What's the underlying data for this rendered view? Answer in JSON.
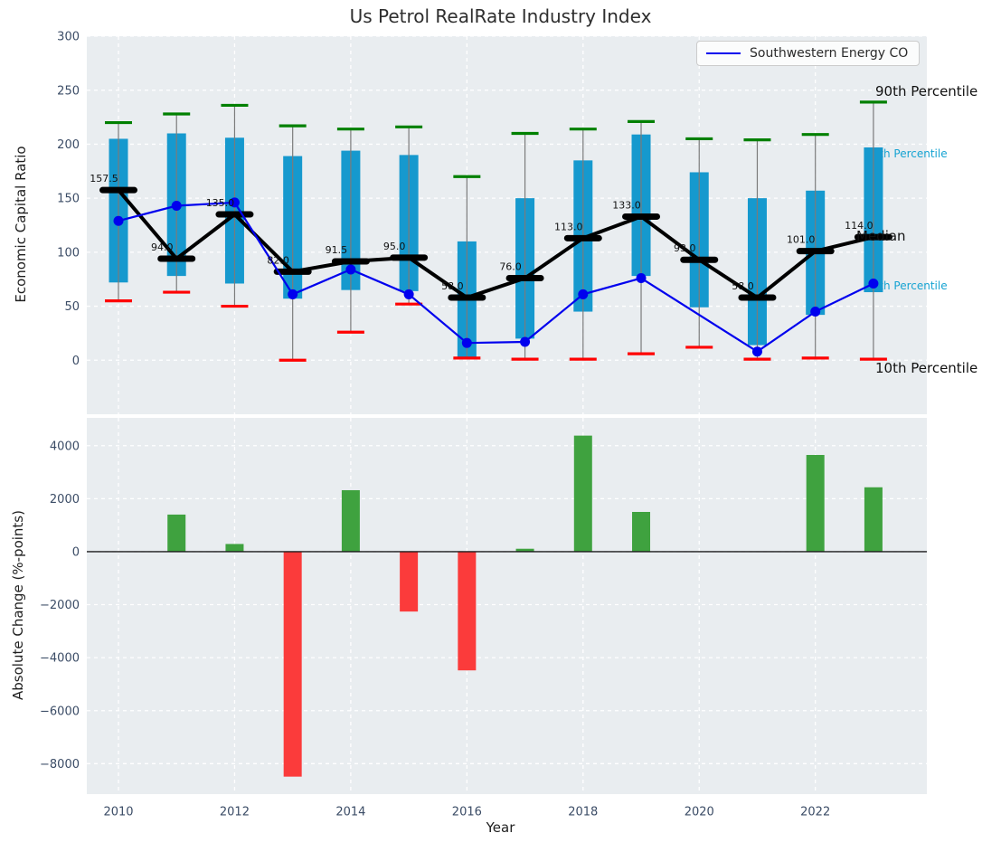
{
  "title": "Us Petrol RealRate Industry Index",
  "legend": {
    "label": "Southwestern Energy CO"
  },
  "annotations": {
    "p90": "90th Percentile",
    "p75": "75th Percentile",
    "median": "Median",
    "p25": "25th Percentile",
    "p10": "10th Percentile"
  },
  "colors": {
    "box": "#1699ce",
    "cap_high": "#008000",
    "cap_low": "#ff0000",
    "whisker": "#7b7b7b",
    "median_line": "#000000",
    "company_line": "#0000ee",
    "bar_positive": "#3fa23f",
    "bar_negative": "#fb3b3b",
    "axes_bg": "#e9edf0",
    "grid": "#ffffff",
    "tick": "#3b4c66",
    "zero_line": "#1a1a1a",
    "annotation_cyan": "#16a3d2"
  },
  "chart_data": [
    {
      "type": "box",
      "title": "Us Petrol RealRate Industry Index",
      "ylabel": "Economic Capital Ratio",
      "ylim": [
        -50,
        300
      ],
      "grid": true,
      "legend_position": "upper right",
      "ytick_values": [
        300,
        250,
        200,
        150,
        100,
        50,
        0
      ],
      "ytick_labels": [
        "300",
        "250",
        "200",
        "150",
        "100",
        "50",
        "0"
      ],
      "years": [
        2010,
        2011,
        2012,
        2013,
        2014,
        2015,
        2016,
        2017,
        2018,
        2019,
        2020,
        2021,
        2022,
        2023
      ],
      "p90": [
        220,
        228,
        236,
        217,
        214,
        216,
        170,
        210,
        214,
        221,
        205,
        204,
        209,
        239
      ],
      "p75": [
        205,
        210,
        206,
        189,
        194,
        190,
        110,
        150,
        185,
        209,
        174,
        150,
        157,
        197
      ],
      "median": [
        157.5,
        94,
        135,
        82,
        91.5,
        95,
        58,
        76,
        113,
        133,
        93,
        58,
        101,
        114
      ],
      "p25": [
        72,
        78,
        71,
        57,
        65,
        64,
        1,
        20,
        45,
        78,
        49,
        14,
        42,
        63
      ],
      "p10": [
        55,
        63,
        50,
        0,
        26,
        52,
        2,
        1,
        1,
        6,
        12,
        1,
        2,
        1
      ],
      "median_labels": [
        "157.5",
        "94.0",
        "135.0",
        "82.0",
        "91.5",
        "95.0",
        "58.0",
        "76.0",
        "113.0",
        "133.0",
        "93.0",
        "58.0",
        "101.0",
        "114.0"
      ],
      "series": [
        {
          "name": "Southwestern Energy CO",
          "values": [
            129,
            143,
            146,
            61,
            84,
            61,
            16,
            17,
            61,
            76,
            null,
            8,
            45,
            71
          ]
        }
      ]
    },
    {
      "type": "bar",
      "ylabel": "Absolute Change (%-points)",
      "xlabel": "Year",
      "ylim": [
        -9150,
        5050
      ],
      "grid": true,
      "ytick_values": [
        4000,
        2000,
        0,
        -2000,
        -4000,
        -6000,
        -8000
      ],
      "ytick_labels": [
        "4000",
        "2000",
        "0",
        "−2000",
        "−4000",
        "−6000",
        "−8000"
      ],
      "xtick_values": [
        2010,
        2012,
        2014,
        2016,
        2018,
        2020,
        2022
      ],
      "xtick_labels": [
        "2010",
        "2012",
        "2014",
        "2016",
        "2018",
        "2020",
        "2022"
      ],
      "years": [
        2010,
        2011,
        2012,
        2013,
        2014,
        2015,
        2016,
        2017,
        2018,
        2019,
        2020,
        2021,
        2022,
        2023
      ],
      "values": [
        null,
        1400,
        290,
        -8490,
        2320,
        -2260,
        -4480,
        110,
        4380,
        1500,
        null,
        null,
        3650,
        2430
      ]
    }
  ]
}
